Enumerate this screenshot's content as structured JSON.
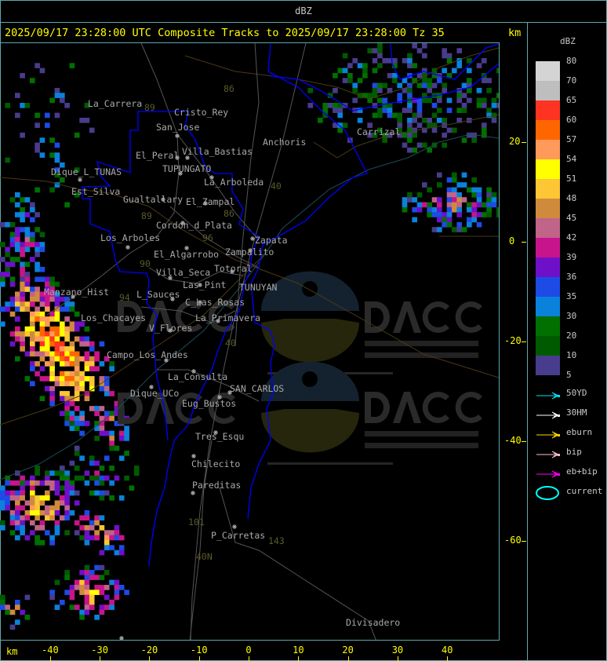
{
  "topbar": {
    "title": "dBZ"
  },
  "header": {
    "title": "2025/09/17 23:28:00 UTC Composite Tracks to 2025/09/17 23:28:00 Tz 35",
    "unit": "km"
  },
  "axes": {
    "x_unit": "km",
    "x_ticks": [
      "-40",
      "-30",
      "-20",
      "-10",
      "0",
      "10",
      "20",
      "30",
      "40"
    ],
    "y_ticks": [
      "20",
      "0",
      "-20",
      "-40",
      "-60"
    ]
  },
  "legend": {
    "title": "dBZ",
    "levels": [
      {
        "label": "80",
        "color": "#d4d4d4"
      },
      {
        "label": "70",
        "color": "#bebebe"
      },
      {
        "label": "65",
        "color": "#ff3322"
      },
      {
        "label": "60",
        "color": "#ff6600"
      },
      {
        "label": "57",
        "color": "#ff9a5a"
      },
      {
        "label": "54",
        "color": "#ffff00"
      },
      {
        "label": "51",
        "color": "#fcc634"
      },
      {
        "label": "48",
        "color": "#d08a3c"
      },
      {
        "label": "45",
        "color": "#c06488"
      },
      {
        "label": "42",
        "color": "#c8148c"
      },
      {
        "label": "39",
        "color": "#6e10c8"
      },
      {
        "label": "36",
        "color": "#1c4be6"
      },
      {
        "label": "35",
        "color": "#0a82dc"
      },
      {
        "label": "30",
        "color": "#007000"
      },
      {
        "label": "20",
        "color": "#005a00"
      },
      {
        "label": "10",
        "color": "#483c8c"
      }
    ],
    "bottom_label": "5",
    "tracks": [
      {
        "label": "50YD",
        "color": "#00e5ee",
        "icon": "arrow-icon"
      },
      {
        "label": "30HM",
        "color": "#ffffff",
        "icon": "arrow-icon"
      },
      {
        "label": "eburn",
        "color": "#ffd700",
        "icon": "arrow-icon"
      },
      {
        "label": "bip",
        "color": "#ffc0cb",
        "icon": "arrow-icon"
      },
      {
        "label": "eb+bip",
        "color": "#ff00ff",
        "icon": "arrow-icon"
      },
      {
        "label": "current",
        "color": "#00ffff",
        "icon": "ellipse-icon"
      }
    ]
  },
  "map": {
    "places": [
      "La_Carrera",
      "Cristo_Rey",
      "San_Jose",
      "Villa_Bastias",
      "El_Peral",
      "Anchoris",
      "Carrizal",
      "Dique_L_TUNAS",
      "TUPUNGATO",
      "La_Arboleda",
      "Est_Silva",
      "Gualtallary",
      "El_Zampal",
      "Cordon_d_Plata",
      "Los_Arboles",
      "Zapata",
      "Zampalito",
      "El_Algarrobo",
      "Totoral",
      "Villa_Seca",
      "Las_Pint",
      "TUNUYAN",
      "Manzano_Hist",
      "L_Sauces",
      "C_Las_Rosas",
      "Los_Chacayes",
      "La_Primavera",
      "V_Flores",
      "Campo_Los_Andes",
      "La_Consulta",
      "SAN_CARLOS",
      "Dique_UCo",
      "Eug_Bustos",
      "Tres_Esqu",
      "Chilecito",
      "Pareditas",
      "P_Carretas",
      "Divisadero"
    ],
    "routes": [
      "89",
      "86",
      "40",
      "86",
      "89",
      "96",
      "90",
      "94",
      "40",
      "101",
      "143",
      "40N"
    ],
    "watermark": {
      "brand": "DACC",
      "line1": "Dirección de Agricultura",
      "line2": "y Contingencias Climáticas",
      "url": "http://www.contingencias.mendoza.gov.ar"
    }
  },
  "colors": {
    "frame": "#5fa8a8",
    "header_text": "#ffff00",
    "boundary": "#0000ff",
    "roads": "#555555",
    "rivers": "#4a3a14"
  }
}
